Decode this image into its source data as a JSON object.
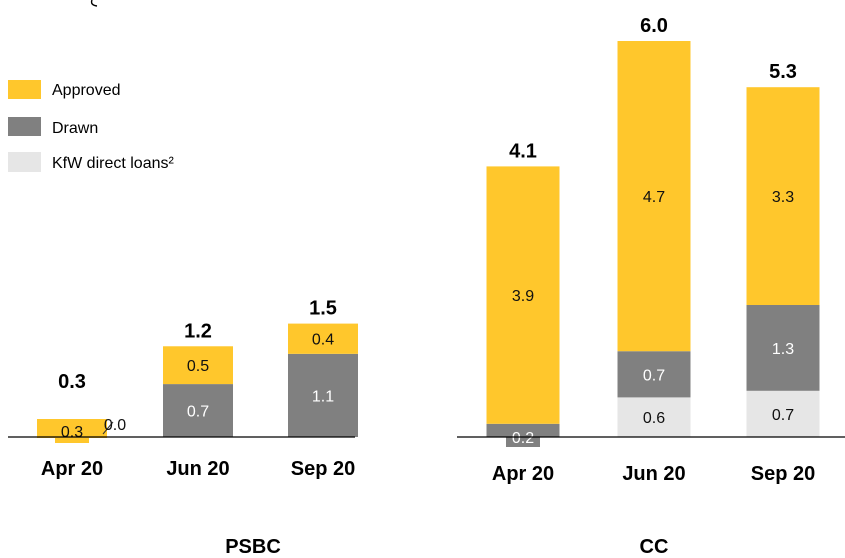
{
  "legend": [
    {
      "label": "Approved",
      "color": "#FFC72C"
    },
    {
      "label": "Drawn",
      "color": "#808080"
    },
    {
      "label": "KfW direct loans²",
      "color": "#E6E6E6"
    }
  ],
  "chart_data": [
    {
      "type": "bar",
      "stacked": true,
      "panel_label": "PSBC",
      "categories": [
        "Apr 20",
        "Jun 20",
        "Sep 20"
      ],
      "series": [
        {
          "name": "Drawn",
          "color": "#808080",
          "values": [
            0.0,
            0.7,
            1.1
          ],
          "labels": [
            "0.0",
            "0.7",
            "1.1"
          ]
        },
        {
          "name": "Approved",
          "color": "#FFC72C",
          "values": [
            0.3,
            0.5,
            0.4
          ],
          "labels": [
            "0.3",
            "0.5",
            "0.4"
          ]
        }
      ],
      "totals": [
        "0.3",
        "1.2",
        "1.5"
      ]
    },
    {
      "type": "bar",
      "stacked": true,
      "panel_label": "CC",
      "categories": [
        "Apr 20",
        "Jun 20",
        "Sep 20"
      ],
      "series": [
        {
          "name": "KfW direct loans²",
          "color": "#E6E6E6",
          "values": [
            0,
            0.6,
            0.7
          ],
          "labels": [
            "",
            "0.6",
            "0.7"
          ]
        },
        {
          "name": "Drawn",
          "color": "#808080",
          "values": [
            0.2,
            0.7,
            1.3
          ],
          "labels": [
            "0.2",
            "0.7",
            "1.3"
          ]
        },
        {
          "name": "Approved",
          "color": "#FFC72C",
          "values": [
            3.9,
            4.7,
            3.3
          ],
          "labels": [
            "3.9",
            "4.7",
            "3.3"
          ]
        }
      ],
      "totals": [
        "4.1",
        "6.0",
        "5.3"
      ]
    }
  ]
}
